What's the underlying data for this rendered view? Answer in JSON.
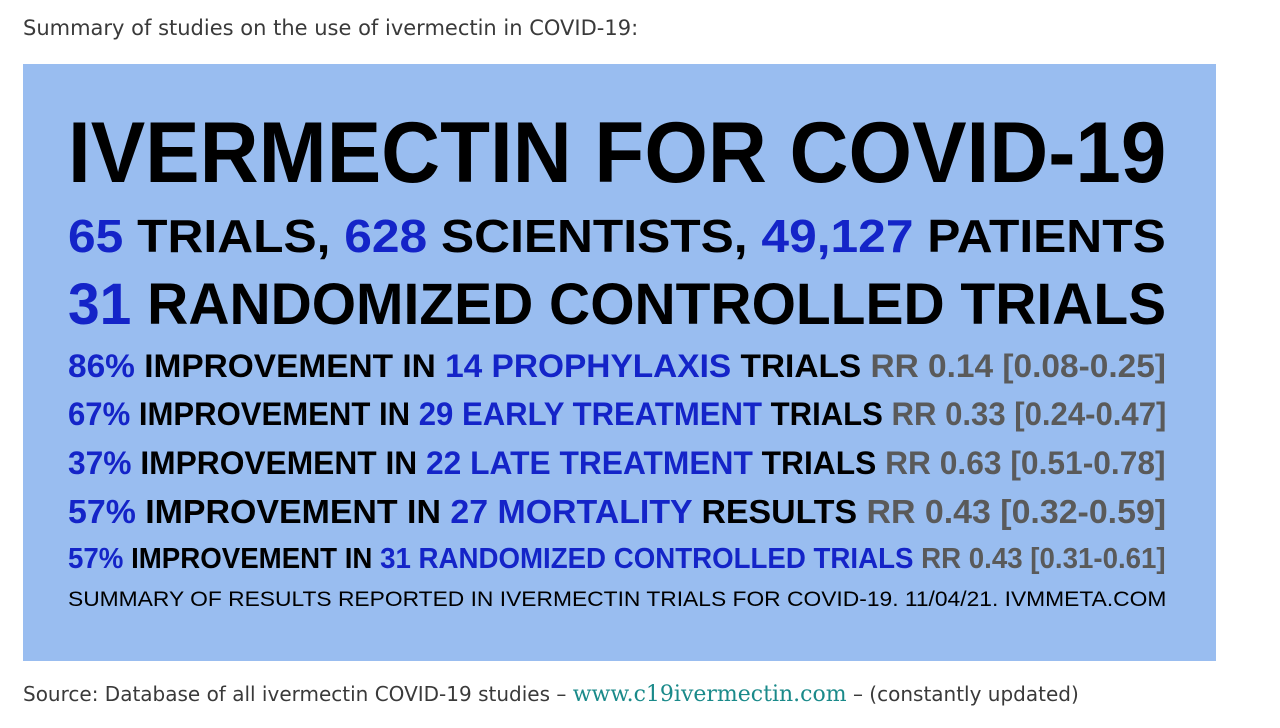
{
  "intro_text": "Summary of studies on the use of ivermectin in COVID-19:",
  "panel": {
    "headline": "IVERMECTIN FOR COVID-19",
    "line2": {
      "n1": "65",
      "t1": " TRIALS, ",
      "n2": "628",
      "t2": " SCIENTISTS, ",
      "n3": "49,127",
      "t3": " PATIENTS"
    },
    "line3": {
      "n": "31",
      "t": " RANDOMIZED CONTROLLED TRIALS"
    },
    "stats": [
      {
        "pct": "86%",
        "mid": " IMPROVEMENT IN ",
        "group": "14 PROPHYLAXIS",
        "suffix": " TRIALS ",
        "rr": "RR 0.14 [0.08-0.25]"
      },
      {
        "pct": "67%",
        "mid": " IMPROVEMENT IN ",
        "group": "29 EARLY TREATMENT",
        "suffix": " TRIALS ",
        "rr": "RR 0.33 [0.24-0.47]"
      },
      {
        "pct": "37%",
        "mid": " IMPROVEMENT IN ",
        "group": "22 LATE TREATMENT",
        "suffix": " TRIALS ",
        "rr": "RR 0.63 [0.51-0.78]"
      },
      {
        "pct": "57%",
        "mid": " IMPROVEMENT IN ",
        "group": "27 MORTALITY",
        "suffix": " RESULTS ",
        "rr": "RR 0.43 [0.32-0.59]"
      },
      {
        "pct": "57%",
        "mid": " IMPROVEMENT IN ",
        "group": "31 RANDOMIZED CONTROLLED TRIALS",
        "suffix": " ",
        "rr": "RR 0.43 [0.31-0.61]"
      }
    ],
    "footer": "SUMMARY OF RESULTS REPORTED IN IVERMECTIN TRIALS FOR COVID-19. 11/04/21. IVMMETA.COM"
  },
  "source": {
    "prefix": "Source: Database of all ivermectin COVID-19 studies – ",
    "link": "www.c19ivermectin.com",
    "suffix": " – (constantly updated)"
  },
  "colors": {
    "panel_bg": "#99bdf0",
    "highlight_blue": "#1424c8",
    "rr_gray": "#5a5a5a",
    "link_teal": "#1a8a8a"
  }
}
